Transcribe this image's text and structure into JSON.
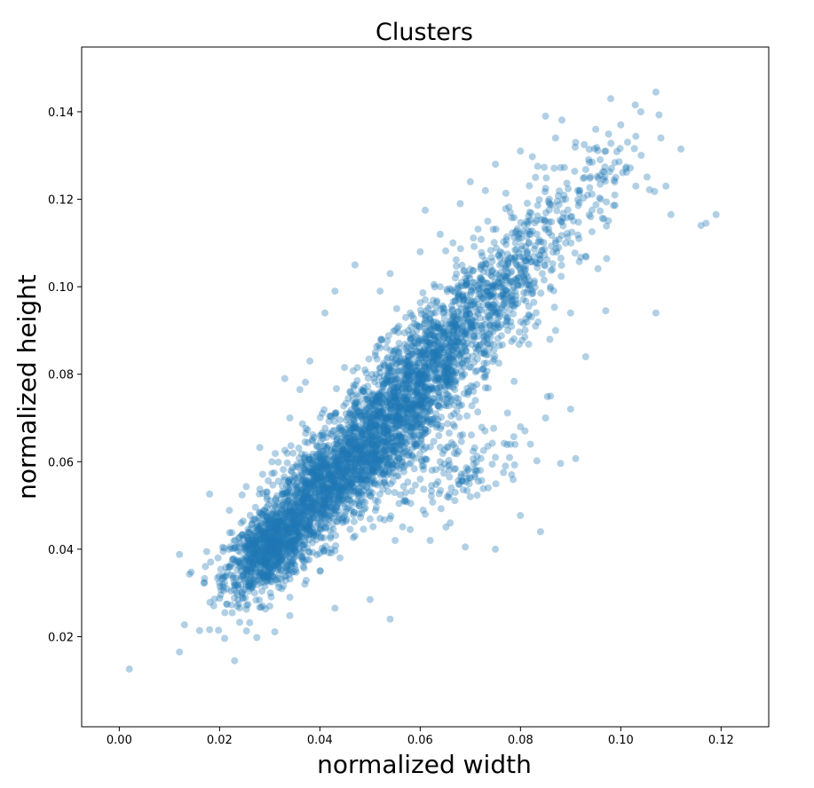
{
  "chart_data": {
    "type": "scatter",
    "title": "Clusters",
    "xlabel": "normalized width",
    "ylabel": "normalized height",
    "xlim": [
      -0.0075,
      0.1295
    ],
    "ylim": [
      -0.0006,
      0.1548
    ],
    "x_ticks": [
      0.0,
      0.02,
      0.04,
      0.06,
      0.08,
      0.1,
      0.12
    ],
    "x_tick_labels": [
      "0.00",
      "0.02",
      "0.04",
      "0.06",
      "0.08",
      "0.10",
      "0.12"
    ],
    "y_ticks": [
      0.02,
      0.04,
      0.06,
      0.08,
      0.1,
      0.12,
      0.14
    ],
    "y_tick_labels": [
      "0.02",
      "0.04",
      "0.06",
      "0.08",
      "0.10",
      "0.12",
      "0.14"
    ],
    "grid": false,
    "legend": false,
    "marker_color": "#1f77b4",
    "marker_alpha": 0.35,
    "series": [
      {
        "points": [
          [
            0.002,
            0.0126
          ],
          [
            0.012,
            0.0165
          ],
          [
            0.013,
            0.0227
          ],
          [
            0.012,
            0.0388
          ],
          [
            0.014,
            0.0343
          ],
          [
            0.016,
            0.0214
          ],
          [
            0.018,
            0.0216
          ],
          [
            0.019,
            0.0286
          ],
          [
            0.017,
            0.0333
          ],
          [
            0.018,
            0.0526
          ],
          [
            0.021,
            0.0196
          ],
          [
            0.023,
            0.0145
          ],
          [
            0.024,
            0.0233
          ],
          [
            0.026,
            0.0232
          ],
          [
            0.028,
            0.0267
          ],
          [
            0.031,
            0.0211
          ],
          [
            0.034,
            0.0248
          ],
          [
            0.033,
            0.079
          ],
          [
            0.034,
            0.07
          ],
          [
            0.036,
            0.0765
          ],
          [
            0.038,
            0.083
          ],
          [
            0.041,
            0.094
          ],
          [
            0.043,
            0.099
          ],
          [
            0.047,
            0.105
          ],
          [
            0.052,
            0.099
          ],
          [
            0.054,
            0.103
          ],
          [
            0.06,
            0.108
          ],
          [
            0.061,
            0.1175
          ],
          [
            0.064,
            0.112
          ],
          [
            0.068,
            0.119
          ],
          [
            0.07,
            0.124
          ],
          [
            0.073,
            0.122
          ],
          [
            0.075,
            0.128
          ],
          [
            0.08,
            0.131
          ],
          [
            0.085,
            0.139
          ],
          [
            0.087,
            0.134
          ],
          [
            0.091,
            0.133
          ],
          [
            0.095,
            0.136
          ],
          [
            0.098,
            0.143
          ],
          [
            0.1,
            0.137
          ],
          [
            0.104,
            0.14
          ],
          [
            0.107,
            0.1445
          ],
          [
            0.108,
            0.134
          ],
          [
            0.109,
            0.123
          ],
          [
            0.11,
            0.1165
          ],
          [
            0.112,
            0.1315
          ],
          [
            0.116,
            0.114
          ],
          [
            0.117,
            0.1145
          ],
          [
            0.119,
            0.1165
          ],
          [
            0.107,
            0.094
          ],
          [
            0.097,
            0.0945
          ],
          [
            0.09,
            0.094
          ],
          [
            0.093,
            0.084
          ],
          [
            0.086,
            0.075
          ],
          [
            0.09,
            0.072
          ],
          [
            0.091,
            0.0607
          ],
          [
            0.088,
            0.0596
          ],
          [
            0.084,
            0.044
          ],
          [
            0.08,
            0.0477
          ],
          [
            0.075,
            0.04
          ],
          [
            0.069,
            0.0405
          ],
          [
            0.066,
            0.046
          ],
          [
            0.061,
            0.048
          ],
          [
            0.054,
            0.024
          ],
          [
            0.05,
            0.0285
          ],
          [
            0.043,
            0.0265
          ],
          [
            0.055,
            0.042
          ],
          [
            0.058,
            0.0445
          ],
          [
            0.062,
            0.042
          ],
          [
            0.07,
            0.052
          ],
          [
            0.072,
            0.058
          ],
          [
            0.075,
            0.061
          ],
          [
            0.078,
            0.064
          ],
          [
            0.08,
            0.068
          ],
          [
            0.077,
            0.059
          ],
          [
            0.082,
            0.064
          ],
          [
            0.085,
            0.07
          ],
          [
            0.087,
            0.09
          ],
          [
            0.086,
            0.1
          ],
          [
            0.089,
            0.11
          ],
          [
            0.093,
            0.107
          ],
          [
            0.094,
            0.116
          ],
          [
            0.096,
            0.12
          ],
          [
            0.099,
            0.125
          ],
          [
            0.101,
            0.127
          ],
          [
            0.103,
            0.123
          ],
          [
            0.097,
            0.131
          ],
          [
            0.089,
            0.12
          ],
          [
            0.083,
            0.125
          ],
          [
            0.078,
            0.117
          ],
          [
            0.081,
            0.104
          ],
          [
            0.079,
            0.096
          ],
          [
            0.083,
            0.091
          ],
          [
            0.074,
            0.087
          ],
          [
            0.071,
            0.074
          ],
          [
            0.068,
            0.066
          ],
          [
            0.064,
            0.06
          ],
          [
            0.06,
            0.056
          ],
          [
            0.057,
            0.051
          ],
          [
            0.052,
            0.047
          ],
          [
            0.047,
            0.043
          ],
          [
            0.044,
            0.038
          ],
          [
            0.04,
            0.035
          ],
          [
            0.037,
            0.032
          ],
          [
            0.034,
            0.029
          ],
          [
            0.03,
            0.027
          ],
          [
            0.027,
            0.03
          ],
          [
            0.024,
            0.033
          ],
          [
            0.022,
            0.036
          ],
          [
            0.025,
            0.04
          ],
          [
            0.028,
            0.045
          ],
          [
            0.031,
            0.05
          ],
          [
            0.034,
            0.056
          ],
          [
            0.037,
            0.061
          ],
          [
            0.04,
            0.066
          ],
          [
            0.043,
            0.071
          ],
          [
            0.046,
            0.076
          ],
          [
            0.049,
            0.081
          ],
          [
            0.052,
            0.086
          ],
          [
            0.055,
            0.09
          ],
          [
            0.058,
            0.094
          ],
          [
            0.061,
            0.097
          ],
          [
            0.064,
            0.1
          ],
          [
            0.067,
            0.102
          ],
          [
            0.07,
            0.104
          ],
          [
            0.073,
            0.106
          ],
          [
            0.076,
            0.108
          ],
          [
            0.079,
            0.11
          ],
          [
            0.082,
            0.112
          ],
          [
            0.085,
            0.115
          ]
        ]
      }
    ]
  }
}
